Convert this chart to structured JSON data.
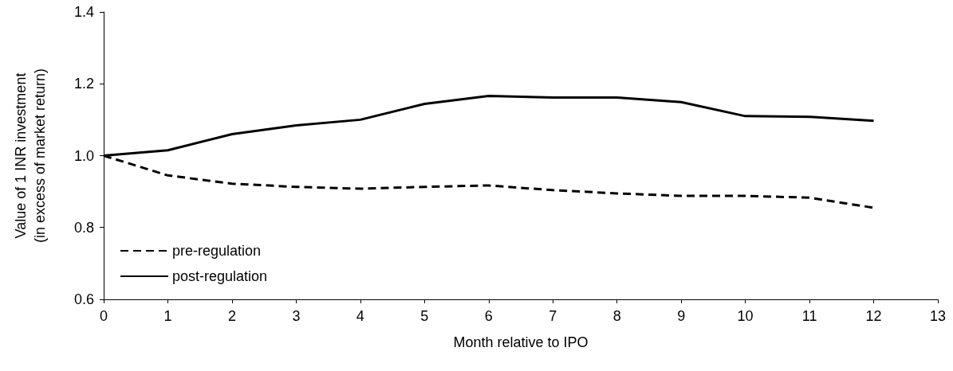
{
  "chart_data": {
    "type": "line",
    "xlabel": "Month relative to IPO",
    "ylabel": "Value of 1 INR investment\n(in excess of market return)",
    "x": [
      0,
      1,
      2,
      3,
      4,
      5,
      6,
      7,
      8,
      9,
      10,
      11,
      12
    ],
    "series": [
      {
        "name": "pre-regulation",
        "color": "#000000",
        "line_style": "dashed",
        "values": [
          1.0,
          0.945,
          0.922,
          0.913,
          0.908,
          0.913,
          0.917,
          0.904,
          0.895,
          0.888,
          0.888,
          0.883,
          0.855
        ]
      },
      {
        "name": "post-regulation",
        "color": "#000000",
        "line_style": "solid",
        "values": [
          1.0,
          1.015,
          1.06,
          1.084,
          1.1,
          1.144,
          1.166,
          1.162,
          1.162,
          1.149,
          1.11,
          1.108,
          1.097
        ]
      }
    ],
    "xlim": [
      0,
      13
    ],
    "xticks": [
      0,
      1,
      2,
      3,
      4,
      5,
      6,
      7,
      8,
      9,
      10,
      11,
      12,
      13
    ],
    "ylim": [
      0.6,
      1.4
    ],
    "yticks": [
      {
        "value": 0.6,
        "label": "0.6"
      },
      {
        "value": 0.8,
        "label": "0.8"
      },
      {
        "value": 1.0,
        "label": "1.0"
      },
      {
        "value": 1.2,
        "label": "1.2"
      },
      {
        "value": 1.4,
        "label": "1.4"
      }
    ],
    "grid": false,
    "legend": "bottom left",
    "marker": "none"
  }
}
